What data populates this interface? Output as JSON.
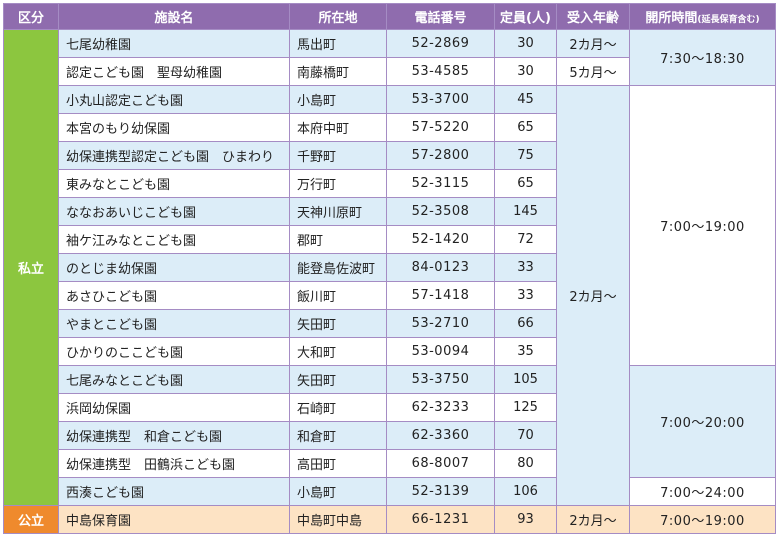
{
  "header": {
    "category": "区分",
    "name": "施設名",
    "location": "所在地",
    "phone": "電話番号",
    "capacity": "定員(人)",
    "age": "受入年齢",
    "hours": "開所時間",
    "hours_note": "(延長保育含む)"
  },
  "categories": {
    "private": "私立",
    "public": "公立"
  },
  "rows": [
    {
      "name": "七尾幼稚園",
      "location": "馬出町",
      "phone": "52-2869",
      "capacity": "30",
      "age": "2カ月〜"
    },
    {
      "name": "認定こども園　聖母幼稚園",
      "location": "南藤橋町",
      "phone": "53-4585",
      "capacity": "30",
      "age": "5カ月〜"
    },
    {
      "name": "小丸山認定こども園",
      "location": "小島町",
      "phone": "53-3700",
      "capacity": "45"
    },
    {
      "name": "本宮のもり幼保園",
      "location": "本府中町",
      "phone": "57-5220",
      "capacity": "65"
    },
    {
      "name": "幼保連携型認定こども園　ひまわり",
      "location": "千野町",
      "phone": "57-2800",
      "capacity": "75"
    },
    {
      "name": "東みなとこども園",
      "location": "万行町",
      "phone": "52-3115",
      "capacity": "65"
    },
    {
      "name": "ななおあいじこども園",
      "location": "天神川原町",
      "phone": "52-3508",
      "capacity": "145"
    },
    {
      "name": "袖ケ江みなとこども園",
      "location": "郡町",
      "phone": "52-1420",
      "capacity": "72"
    },
    {
      "name": "のとじま幼保園",
      "location": "能登島佐波町",
      "phone": "84-0123",
      "capacity": "33"
    },
    {
      "name": "あさひこども園",
      "location": "飯川町",
      "phone": "57-1418",
      "capacity": "33"
    },
    {
      "name": "やまとこども園",
      "location": "矢田町",
      "phone": "53-2710",
      "capacity": "66"
    },
    {
      "name": "ひかりのここども園",
      "location": "大和町",
      "phone": "53-0094",
      "capacity": "35"
    },
    {
      "name": "七尾みなとこども園",
      "location": "矢田町",
      "phone": "53-3750",
      "capacity": "105"
    },
    {
      "name": "浜岡幼保園",
      "location": "石崎町",
      "phone": "62-3233",
      "capacity": "125"
    },
    {
      "name": "幼保連携型　和倉こども園",
      "location": "和倉町",
      "phone": "62-3360",
      "capacity": "70"
    },
    {
      "name": "幼保連携型　田鶴浜こども園",
      "location": "高田町",
      "phone": "68-8007",
      "capacity": "80"
    },
    {
      "name": "西湊こども園",
      "location": "小島町",
      "phone": "52-3139",
      "capacity": "106"
    },
    {
      "name": "中島保育園",
      "location": "中島町中島",
      "phone": "66-1231",
      "capacity": "93",
      "age": "2カ月〜"
    }
  ],
  "shared": {
    "age_private_group": "2カ月〜",
    "hours_a": "7:30〜18:30",
    "hours_b": "7:00〜19:00",
    "hours_c": "7:00〜20:00",
    "hours_d": "7:00〜24:00",
    "hours_public": "7:00〜19:00"
  },
  "colors": {
    "header_bg": "#8f6cae",
    "private_bg": "#8cc63f",
    "public_bg": "#ef8a2d",
    "row_blue": "#dcedf8",
    "public_row": "#fde3c4"
  }
}
